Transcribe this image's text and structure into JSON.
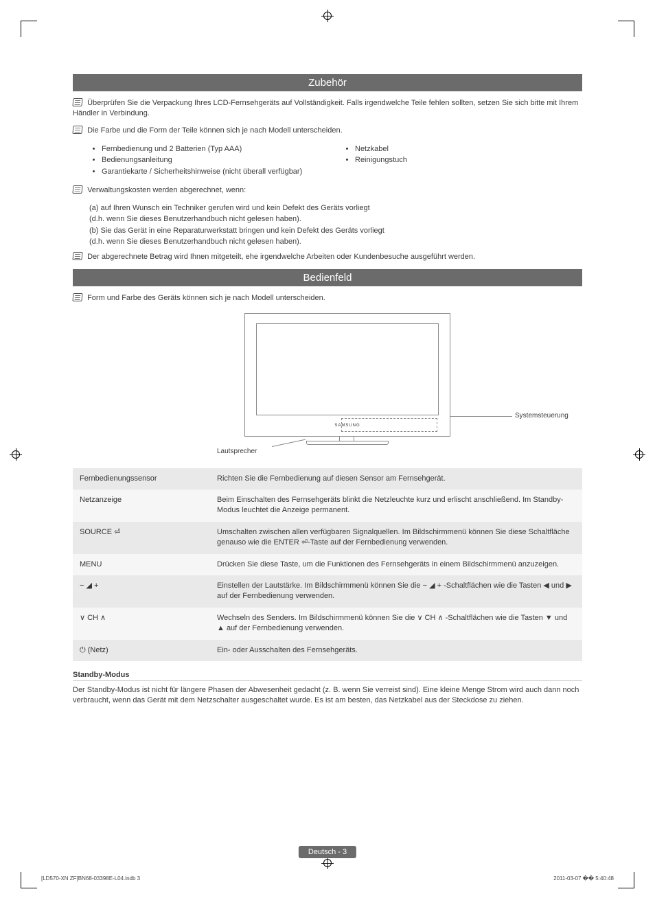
{
  "sections": {
    "zubehoer_title": "Zubehör",
    "bedienfeld_title": "Bedienfeld"
  },
  "notes": {
    "n1": "Überprüfen Sie die Verpackung Ihres LCD-Fernsehgeräts auf Vollständigkeit. Falls irgendwelche Teile fehlen sollten, setzen Sie sich bitte mit Ihrem Händler in Verbindung.",
    "n2": "Die Farbe und die Form der Teile können sich je nach Modell unterscheiden.",
    "n3": "Verwaltungskosten werden abgerechnet, wenn:",
    "n3a": "(a) auf Ihren Wunsch ein Techniker gerufen wird und kein Defekt des Geräts vorliegt",
    "n3b": "(d.h. wenn Sie dieses Benutzerhandbuch nicht gelesen haben).",
    "n3c": "(b) Sie das Gerät in eine Reparaturwerkstatt bringen und kein Defekt des Geräts vorliegt",
    "n3d": "(d.h. wenn Sie dieses Benutzerhandbuch nicht gelesen haben).",
    "n4": "Der abgerechnete Betrag wird Ihnen mitgeteilt, ehe irgendwelche Arbeiten oder Kundenbesuche ausgeführt werden.",
    "n5": "Form und Farbe des Geräts können sich je nach Modell unterscheiden."
  },
  "accessories": {
    "left": [
      "Fernbedienung und 2 Batterien (Typ AAA)",
      "Bedienungsanleitung",
      "Garantiekarte / Sicherheitshinweise (nicht überall verfügbar)"
    ],
    "right": [
      "Netzkabel",
      "Reinigungstuch"
    ]
  },
  "figure": {
    "brand": "SAMSUNG",
    "callout_right": "Systemsteuerung",
    "callout_left": "Lautsprecher"
  },
  "controls": [
    {
      "key": "Fernbedienungssensor",
      "desc": "Richten Sie die Fernbedienung auf diesen Sensor am Fernsehgerät."
    },
    {
      "key": "Netzanzeige",
      "desc": "Beim Einschalten des Fernsehgeräts blinkt die Netzleuchte kurz und erlischt anschließend. Im Standby-Modus leuchtet die Anzeige permanent."
    },
    {
      "key": "SOURCE ⏎",
      "desc": "Umschalten zwischen allen verfügbaren Signalquellen. Im Bildschirmmenü können Sie diese Schaltfläche genauso wie die ENTER ⏎-Taste auf der Fernbedienung verwenden."
    },
    {
      "key": "MENU",
      "desc": "Drücken Sie diese Taste, um die Funktionen des  Fernsehgeräts in einem Bildschirmmenü anzuzeigen."
    },
    {
      "key": "− ◢ +",
      "desc": "Einstellen der Lautstärke. Im Bildschirmmenü können Sie die − ◢ + -Schaltflächen wie die Tasten ◀ und ▶ auf der Fernbedienung verwenden."
    },
    {
      "key": "∨ CH ∧",
      "desc": "Wechseln des Senders. Im Bildschirmmenü können Sie die ∨ CH ∧ -Schaltflächen wie die Tasten ▼ und ▲ auf der Fernbedienung verwenden."
    },
    {
      "key": "⏻ (Netz)",
      "desc": "Ein- oder Ausschalten des Fernsehgeräts."
    }
  ],
  "standby": {
    "title": "Standby-Modus",
    "text": "Der Standby-Modus ist nicht für längere Phasen der Abwesenheit gedacht (z. B. wenn Sie verreist sind). Eine kleine Menge Strom wird auch dann noch verbraucht, wenn das Gerät mit dem Netzschalter ausgeschaltet wurde. Es ist am besten, das Netzkabel aus der Steckdose zu ziehen."
  },
  "footer": {
    "page_label": "Deutsch - 3",
    "running_left": "[LD570-XN ZF]BN68-03398E-L04.indb   3",
    "running_right": "2011-03-07   �� 5:40:48"
  },
  "colors": {
    "bar_bg": "#6b6b6b",
    "bar_fg": "#ffffff",
    "row_odd": "#e9e9e9",
    "row_even": "#f6f6f6",
    "text": "#3a3a3a"
  }
}
